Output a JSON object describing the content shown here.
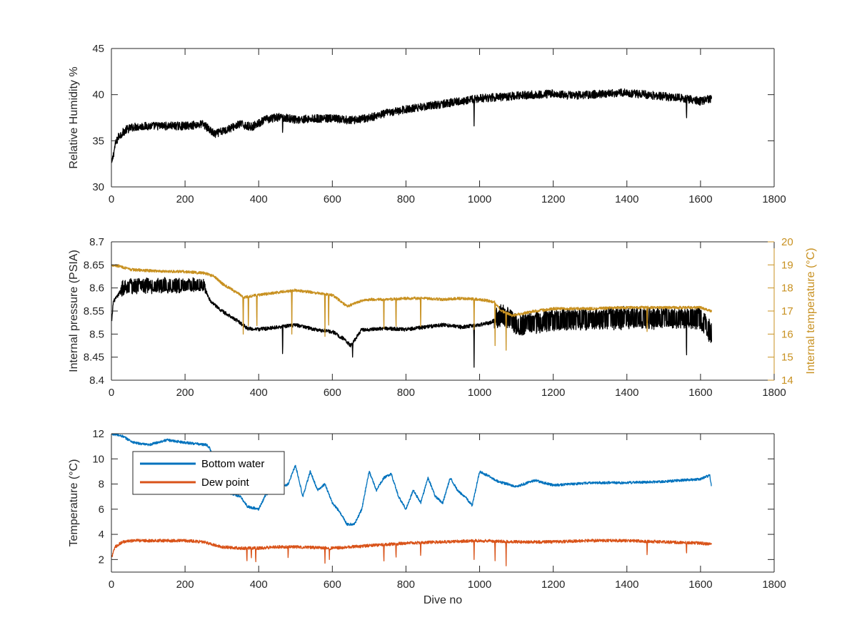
{
  "chart_data": [
    {
      "type": "line",
      "xlabel": "",
      "ylabel": "Relative Humidity %",
      "xlim": [
        0,
        1800
      ],
      "ylim": [
        30,
        45
      ],
      "xticks": [
        0,
        200,
        400,
        600,
        800,
        1000,
        1200,
        1400,
        1600,
        1800
      ],
      "yticks": [
        30,
        35,
        40,
        45
      ],
      "grid": false,
      "series": [
        {
          "name": "",
          "color": "#000000",
          "noise": 0.45,
          "x": [
            1,
            10,
            20,
            40,
            60,
            100,
            150,
            200,
            250,
            280,
            300,
            350,
            380,
            420,
            460,
            500,
            560,
            600,
            650,
            700,
            750,
            800,
            850,
            900,
            950,
            1000,
            1050,
            1100,
            1150,
            1200,
            1250,
            1300,
            1350,
            1400,
            1450,
            1500,
            1550,
            1600,
            1630
          ],
          "values": [
            32.5,
            34.5,
            35.5,
            36.2,
            36.5,
            36.6,
            36.6,
            36.6,
            36.8,
            35.7,
            36.0,
            36.8,
            36.5,
            37.3,
            37.6,
            37.3,
            37.4,
            37.4,
            37.2,
            37.5,
            38.0,
            38.4,
            38.7,
            39.0,
            39.3,
            39.6,
            39.7,
            39.9,
            40.0,
            40.1,
            39.9,
            40.0,
            40.1,
            40.2,
            40.0,
            39.8,
            39.6,
            39.3,
            39.6
          ],
          "spikes": [
            [
              465,
              35.5
            ],
            [
              985,
              36.6
            ],
            [
              1562,
              36.8
            ]
          ]
        }
      ]
    },
    {
      "type": "line",
      "xlabel": "",
      "ylabel": "Internal pressure (PSIA)",
      "ylabel_right": "Internal temperature (°C)",
      "xlim": [
        0,
        1800
      ],
      "ylim": [
        8.4,
        8.7
      ],
      "ylim_right": [
        14,
        20
      ],
      "xticks": [
        0,
        200,
        400,
        600,
        800,
        1000,
        1200,
        1400,
        1600,
        1800
      ],
      "yticks": [
        8.4,
        8.45,
        8.5,
        8.55,
        8.6,
        8.65,
        8.7
      ],
      "yticks_right": [
        14,
        15,
        16,
        17,
        18,
        19,
        20
      ],
      "grid": false,
      "series": [
        {
          "name": "",
          "axis": "left",
          "color": "#000000",
          "noise": 0.004,
          "x": [
            1,
            5,
            15,
            30,
            60,
            100,
            150,
            200,
            250,
            270,
            300,
            340,
            370,
            400,
            450,
            500,
            550,
            600,
            630,
            650,
            680,
            700,
            750,
            800,
            850,
            900,
            950,
            1000,
            1030,
            1060,
            1080,
            1100,
            1150,
            1200,
            1300,
            1400,
            1500,
            1600,
            1630
          ],
          "values": [
            8.527,
            8.57,
            8.58,
            8.6,
            8.605,
            8.605,
            8.605,
            8.605,
            8.605,
            8.57,
            8.55,
            8.53,
            8.512,
            8.51,
            8.515,
            8.52,
            8.51,
            8.505,
            8.49,
            8.475,
            8.51,
            8.51,
            8.512,
            8.51,
            8.515,
            8.52,
            8.515,
            8.52,
            8.525,
            8.54,
            8.535,
            8.52,
            8.525,
            8.53,
            8.532,
            8.535,
            8.535,
            8.535,
            8.5
          ],
          "bands": [
            [
              25,
              255,
              0.014
            ],
            [
              1040,
              1630,
              0.022
            ]
          ],
          "spikes": [
            [
              465,
              8.44
            ],
            [
              655,
              8.45
            ],
            [
              985,
              8.428
            ],
            [
              1562,
              8.437
            ]
          ]
        },
        {
          "name": "",
          "axis": "right",
          "color": "#c89121",
          "noise": 0.06,
          "x": [
            1,
            20,
            50,
            100,
            150,
            200,
            250,
            280,
            300,
            320,
            340,
            360,
            400,
            450,
            500,
            550,
            600,
            640,
            680,
            700,
            750,
            800,
            850,
            900,
            950,
            1000,
            1040,
            1060,
            1090,
            1120,
            1150,
            1200,
            1300,
            1400,
            1500,
            1600,
            1630
          ],
          "values": [
            19.0,
            18.95,
            18.8,
            18.75,
            18.72,
            18.7,
            18.65,
            18.5,
            18.2,
            18.0,
            17.8,
            17.6,
            17.7,
            17.8,
            17.9,
            17.8,
            17.7,
            17.2,
            17.45,
            17.5,
            17.5,
            17.55,
            17.55,
            17.5,
            17.55,
            17.5,
            17.4,
            17.0,
            16.8,
            16.9,
            17.0,
            17.1,
            17.1,
            17.15,
            17.15,
            17.15,
            17.0
          ],
          "spikes": [
            [
              358,
              16.0
            ],
            [
              372,
              16.0
            ],
            [
              395,
              16.0
            ],
            [
              490,
              16.0
            ],
            [
              580,
              15.9
            ],
            [
              590,
              16.0
            ],
            [
              740,
              15.9
            ],
            [
              773,
              16.0
            ],
            [
              840,
              16.0
            ],
            [
              985,
              16.2
            ],
            [
              1042,
              15.5
            ],
            [
              1072,
              15.3
            ],
            [
              1455,
              15.8
            ]
          ]
        }
      ]
    },
    {
      "type": "line",
      "xlabel": "Dive no",
      "ylabel": "Temperature (°C)",
      "xlim": [
        0,
        1800
      ],
      "ylim": [
        1,
        12
      ],
      "xticks": [
        0,
        200,
        400,
        600,
        800,
        1000,
        1200,
        1400,
        1600,
        1800
      ],
      "yticks": [
        2,
        4,
        6,
        8,
        10,
        12
      ],
      "grid": false,
      "legend": "top-left",
      "series": [
        {
          "name": "Bottom water",
          "color": "#0072bd",
          "noise": 0.1,
          "x": [
            1,
            30,
            60,
            100,
            150,
            200,
            260,
            268,
            300,
            350,
            370,
            400,
            420,
            450,
            480,
            500,
            520,
            540,
            560,
            580,
            600,
            620,
            640,
            660,
            680,
            700,
            720,
            740,
            760,
            780,
            800,
            820,
            840,
            860,
            880,
            900,
            920,
            940,
            960,
            980,
            1000,
            1020,
            1050,
            1100,
            1150,
            1200,
            1300,
            1400,
            1500,
            1600,
            1625,
            1630
          ],
          "values": [
            12.0,
            11.8,
            11.3,
            11.1,
            11.5,
            11.3,
            11.1,
            10.8,
            7.5,
            7.0,
            6.2,
            6.0,
            7.2,
            7.5,
            8.0,
            9.5,
            7.0,
            9.0,
            7.5,
            8.0,
            6.5,
            5.8,
            4.8,
            4.8,
            6.0,
            9.0,
            7.5,
            8.5,
            8.8,
            7.0,
            6.0,
            7.5,
            6.5,
            8.5,
            7.0,
            6.5,
            8.5,
            7.5,
            7.0,
            6.3,
            9.0,
            8.7,
            8.2,
            7.8,
            8.3,
            7.9,
            8.1,
            8.1,
            8.2,
            8.4,
            8.7,
            7.8
          ]
        },
        {
          "name": "Dew point",
          "color": "#d95319",
          "noise": 0.12,
          "x": [
            1,
            10,
            30,
            60,
            100,
            200,
            250,
            300,
            350,
            400,
            450,
            500,
            600,
            700,
            800,
            900,
            1000,
            1100,
            1200,
            1300,
            1400,
            1500,
            1600,
            1630
          ],
          "values": [
            2.2,
            3.0,
            3.4,
            3.5,
            3.5,
            3.5,
            3.4,
            3.0,
            2.9,
            2.9,
            3.0,
            3.0,
            2.9,
            3.1,
            3.3,
            3.4,
            3.5,
            3.4,
            3.4,
            3.5,
            3.5,
            3.4,
            3.3,
            3.2
          ],
          "spikes": [
            [
              368,
              1.6
            ],
            [
              380,
              1.9
            ],
            [
              392,
              1.5
            ],
            [
              480,
              1.9
            ],
            [
              580,
              1.7
            ],
            [
              592,
              2.0
            ],
            [
              740,
              1.5
            ],
            [
              773,
              1.9
            ],
            [
              840,
              2.0
            ],
            [
              985,
              2.0
            ],
            [
              1042,
              1.9
            ],
            [
              1072,
              1.5
            ],
            [
              1455,
              2.1
            ],
            [
              1562,
              2.3
            ]
          ]
        }
      ]
    }
  ]
}
